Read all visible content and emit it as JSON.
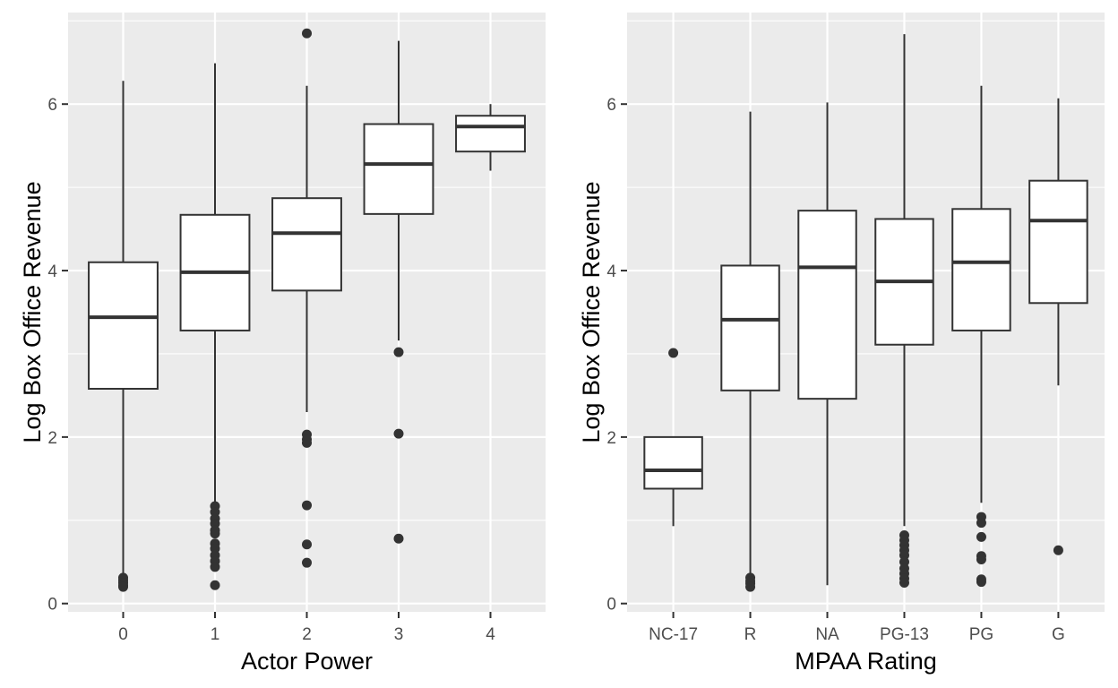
{
  "chart_data": [
    {
      "type": "box",
      "xlabel": "Actor Power",
      "ylabel": "Log Box Office Revenue",
      "ylim": [
        -0.1,
        7.1
      ],
      "yticks": [
        0,
        2,
        4,
        6
      ],
      "grid": true,
      "categories": [
        "0",
        "1",
        "2",
        "3",
        "4"
      ],
      "boxes": [
        {
          "category": "0",
          "lower_whisker": 0.33,
          "q1": 2.58,
          "median": 3.44,
          "q3": 4.1,
          "upper_whisker": 6.28,
          "outliers": [
            0.31,
            0.28,
            0.25,
            0.22,
            0.2
          ]
        },
        {
          "category": "1",
          "lower_whisker": 1.22,
          "q1": 3.28,
          "median": 3.98,
          "q3": 4.67,
          "upper_whisker": 6.49,
          "outliers": [
            1.17,
            1.1,
            1.02,
            0.96,
            0.88,
            0.84,
            0.72,
            0.66,
            0.58,
            0.51,
            0.44,
            0.22
          ]
        },
        {
          "category": "2",
          "lower_whisker": 2.3,
          "q1": 3.76,
          "median": 4.45,
          "q3": 4.87,
          "upper_whisker": 6.22,
          "outliers": [
            6.85,
            2.03,
            1.97,
            1.93,
            1.18,
            0.71,
            0.49
          ]
        },
        {
          "category": "3",
          "lower_whisker": 3.16,
          "q1": 4.68,
          "median": 5.28,
          "q3": 5.76,
          "upper_whisker": 6.76,
          "outliers": [
            3.02,
            2.04,
            0.78
          ]
        },
        {
          "category": "4",
          "lower_whisker": 5.2,
          "q1": 5.43,
          "median": 5.73,
          "q3": 5.86,
          "upper_whisker": 6.0,
          "outliers": []
        }
      ]
    },
    {
      "type": "box",
      "xlabel": "MPAA Rating",
      "ylabel": "Log Box Office Revenue",
      "ylim": [
        -0.1,
        7.1
      ],
      "yticks": [
        0,
        2,
        4,
        6
      ],
      "grid": true,
      "categories": [
        "NC-17",
        "R",
        "NA",
        "PG-13",
        "PG",
        "G"
      ],
      "boxes": [
        {
          "category": "NC-17",
          "lower_whisker": 0.93,
          "q1": 1.38,
          "median": 1.6,
          "q3": 2.0,
          "upper_whisker": 2.0,
          "outliers": [
            3.01
          ]
        },
        {
          "category": "R",
          "lower_whisker": 0.35,
          "q1": 2.56,
          "median": 3.41,
          "q3": 4.06,
          "upper_whisker": 5.91,
          "outliers": [
            0.31,
            0.27,
            0.24,
            0.2
          ]
        },
        {
          "category": "NA",
          "lower_whisker": 0.22,
          "q1": 2.46,
          "median": 4.04,
          "q3": 4.72,
          "upper_whisker": 6.02,
          "outliers": []
        },
        {
          "category": "PG-13",
          "lower_whisker": 0.93,
          "q1": 3.11,
          "median": 3.87,
          "q3": 4.62,
          "upper_whisker": 6.84,
          "outliers": [
            0.82,
            0.76,
            0.7,
            0.64,
            0.58,
            0.5,
            0.42,
            0.36,
            0.3,
            0.25
          ]
        },
        {
          "category": "PG",
          "lower_whisker": 1.21,
          "q1": 3.28,
          "median": 4.1,
          "q3": 4.74,
          "upper_whisker": 6.22,
          "outliers": [
            1.04,
            0.97,
            0.8,
            0.57,
            0.53,
            0.29,
            0.26
          ]
        },
        {
          "category": "G",
          "lower_whisker": 2.62,
          "q1": 3.61,
          "median": 4.6,
          "q3": 5.08,
          "upper_whisker": 6.07,
          "outliers": [
            0.64
          ]
        }
      ]
    }
  ]
}
